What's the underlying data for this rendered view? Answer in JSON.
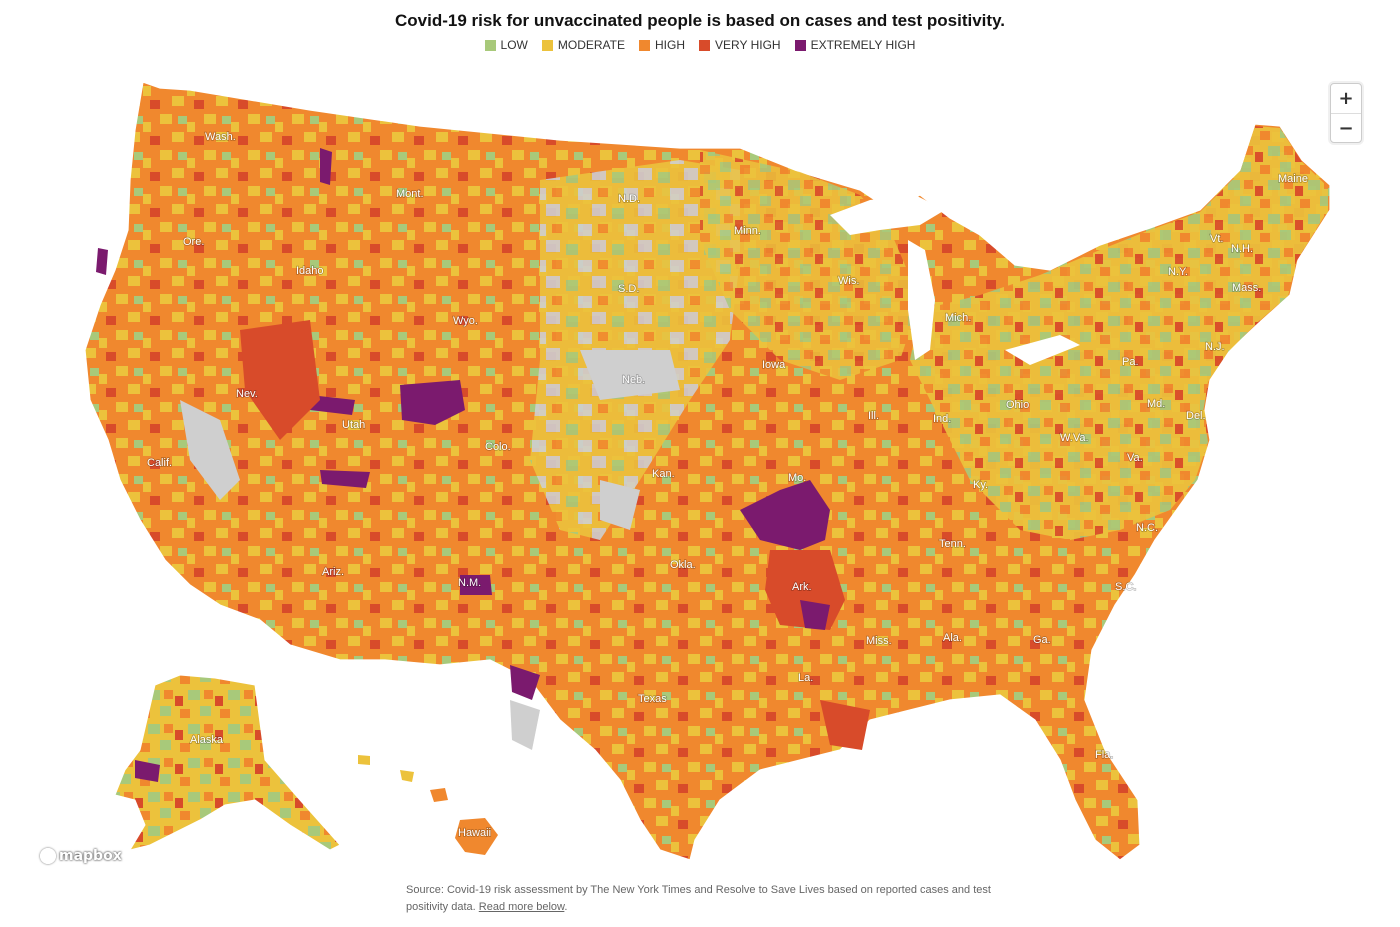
{
  "title": "Covid-19 risk for unvaccinated people is based on cases and test positivity.",
  "legend": [
    {
      "label": "LOW",
      "color": "#a8c97a"
    },
    {
      "label": "MODERATE",
      "color": "#ecc23c"
    },
    {
      "label": "HIGH",
      "color": "#f0882e"
    },
    {
      "label": "VERY HIGH",
      "color": "#d84b2a"
    },
    {
      "label": "EXTREMELY HIGH",
      "color": "#7b1a6e"
    }
  ],
  "no_data_color": "#cfcfcf",
  "zoom": {
    "in_label": "+",
    "out_label": "−"
  },
  "attribution": "mapbox",
  "source_text": "Source: Covid-19 risk assessment by The New York Times and Resolve to Save Lives based on reported cases and test positivity data.",
  "source_link": "Read more below",
  "source_end": ".",
  "state_labels": [
    "Wash.",
    "Ore.",
    "Calif.",
    "Nev.",
    "Idaho",
    "Mont.",
    "Wyo.",
    "Utah",
    "Ariz.",
    "Colo.",
    "N.M.",
    "N.D.",
    "S.D.",
    "Neb.",
    "Kan.",
    "Okla.",
    "Texas",
    "Minn.",
    "Iowa",
    "Mo.",
    "Ark.",
    "La.",
    "Wis.",
    "Ill.",
    "Mich.",
    "Ind.",
    "Ohio",
    "Ky.",
    "Tenn.",
    "Miss.",
    "Ala.",
    "Ga.",
    "Fla.",
    "S.C.",
    "N.C.",
    "Va.",
    "W.Va.",
    "Pa.",
    "N.Y.",
    "Vt.",
    "N.H.",
    "Maine",
    "Mass.",
    "Md.",
    "Del.",
    "N.J.",
    "Alaska",
    "Hawaii"
  ]
}
